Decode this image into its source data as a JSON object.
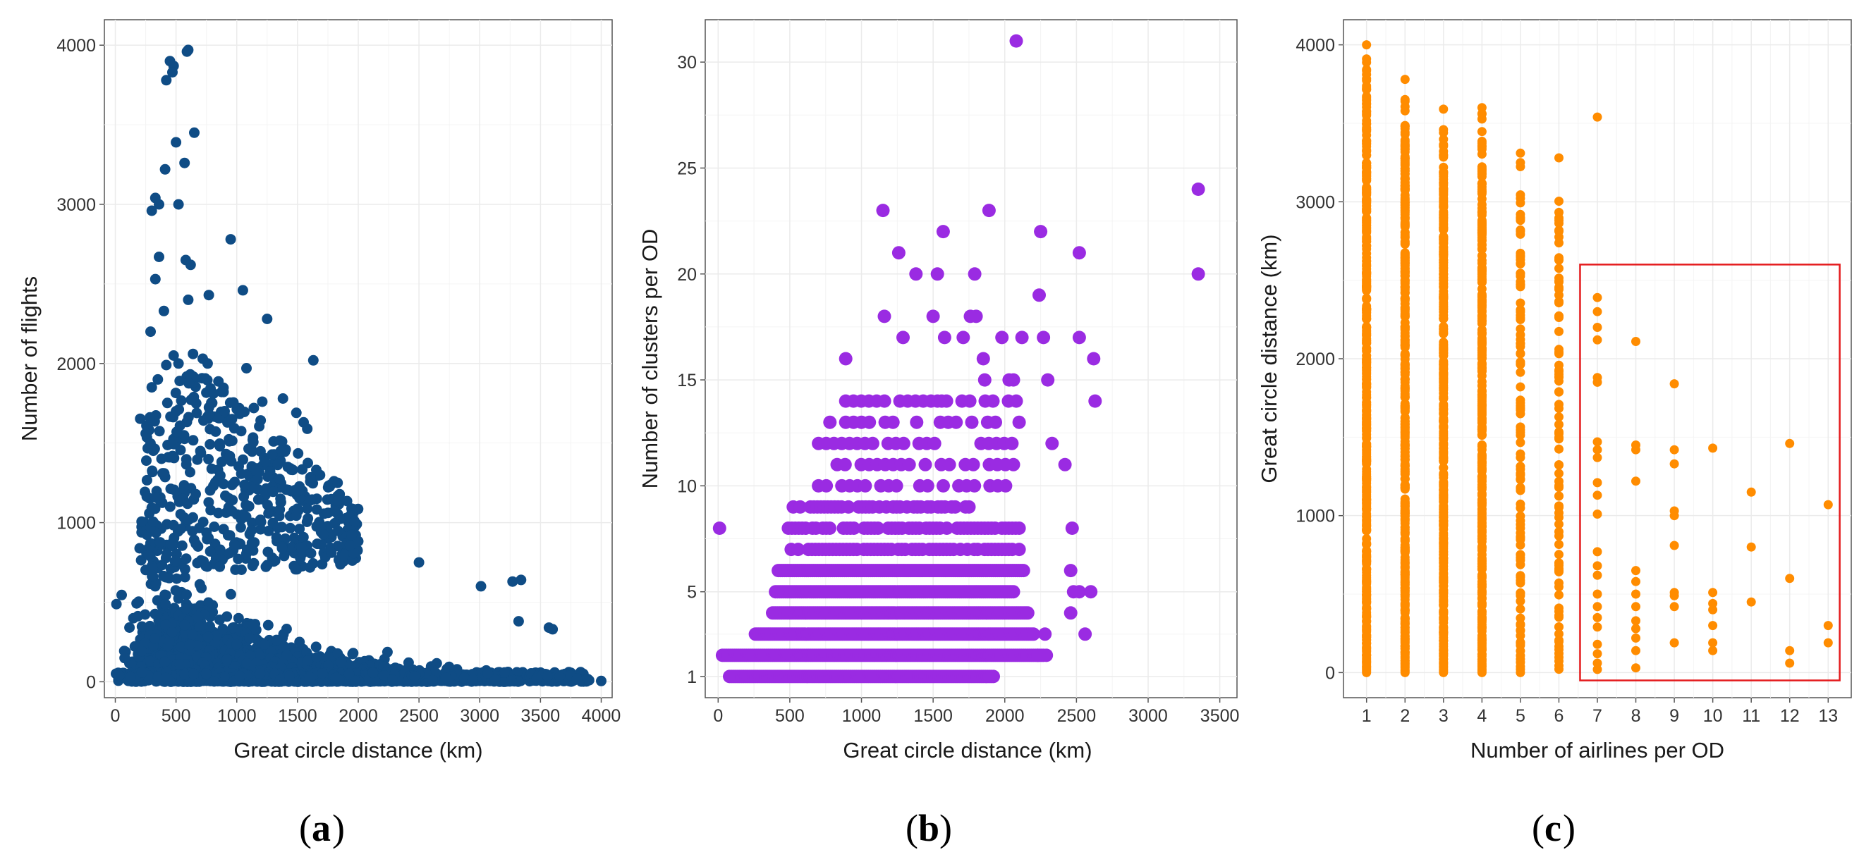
{
  "colors": {
    "panel_a_points": "#0f4c85",
    "panel_b_points": "#9a2be2",
    "panel_c_points": "#ff8c00",
    "highlight_box": "#e41a1c"
  },
  "chart_data": [
    {
      "id": "a",
      "type": "scatter",
      "panel_label": "a",
      "xlabel": "Great circle distance (km)",
      "ylabel": "Number of flights",
      "xlim": [
        -90,
        4090
      ],
      "ylim": [
        -100,
        4160
      ],
      "xticks": [
        0,
        500,
        1000,
        1500,
        2000,
        2500,
        3000,
        3500,
        4000
      ],
      "xtick_labels": [
        "0",
        "500",
        "1000",
        "1500",
        "2000",
        "2500",
        "3000",
        "3500",
        "4000"
      ],
      "yticks": [
        0,
        1000,
        2000,
        3000,
        4000
      ],
      "ytick_labels": [
        "0",
        "1000",
        "2000",
        "3000",
        "4000"
      ],
      "grid": true,
      "color": "#0f4c85",
      "series": [
        {
          "description_points": "dense cloud near zero plus upper outliers",
          "points": [
            [
              450,
              3900
            ],
            [
              480,
              3870
            ],
            [
              420,
              3780
            ],
            [
              470,
              3830
            ],
            [
              590,
              3960
            ],
            [
              600,
              3970
            ],
            [
              650,
              3450
            ],
            [
              500,
              3390
            ],
            [
              570,
              3260
            ],
            [
              410,
              3220
            ],
            [
              330,
              3040
            ],
            [
              360,
              3000
            ],
            [
              300,
              2960
            ],
            [
              520,
              3000
            ],
            [
              950,
              2780
            ],
            [
              360,
              2670
            ],
            [
              330,
              2530
            ],
            [
              580,
              2650
            ],
            [
              620,
              2620
            ],
            [
              1050,
              2460
            ],
            [
              770,
              2430
            ],
            [
              600,
              2400
            ],
            [
              1250,
              2280
            ],
            [
              290,
              2200
            ],
            [
              400,
              2330
            ],
            [
              480,
              2050
            ],
            [
              520,
              2000
            ],
            [
              640,
              2060
            ],
            [
              720,
              2030
            ],
            [
              760,
              2000
            ],
            [
              1630,
              2020
            ],
            [
              420,
              1990
            ],
            [
              350,
              1900
            ],
            [
              530,
              1890
            ],
            [
              1080,
              1970
            ],
            [
              1210,
              1760
            ],
            [
              1380,
              1780
            ],
            [
              900,
              1700
            ],
            [
              960,
              1650
            ],
            [
              1140,
              1720
            ],
            [
              1040,
              1700
            ],
            [
              1550,
              1630
            ],
            [
              1490,
              1690
            ],
            [
              1580,
              1590
            ],
            [
              1800,
              1260
            ],
            [
              1830,
              1250
            ],
            [
              300,
              1850
            ],
            [
              250,
              1560
            ],
            [
              500,
              1700
            ],
            [
              700,
              1450
            ],
            [
              1420,
              1350
            ],
            [
              2500,
              750
            ],
            [
              3010,
              600
            ],
            [
              3270,
              630
            ],
            [
              3340,
              640
            ],
            [
              3320,
              380
            ],
            [
              3570,
              340
            ],
            [
              3600,
              330
            ],
            [
              3750,
              40
            ],
            [
              3800,
              20
            ],
            [
              3900,
              10
            ],
            [
              4000,
              5
            ]
          ]
        }
      ]
    },
    {
      "id": "b",
      "type": "scatter",
      "panel_label": "b",
      "xlabel": "Great circle distance (km)",
      "ylabel": "Number of clusters per OD",
      "xlim": [
        -90,
        3620
      ],
      "ylim": [
        0.0,
        32.0
      ],
      "xticks": [
        0,
        500,
        1000,
        1500,
        2000,
        2500,
        3000,
        3500
      ],
      "xtick_labels": [
        "0",
        "500",
        "1000",
        "1500",
        "2000",
        "2500",
        "3000",
        "3500"
      ],
      "yticks": [
        1,
        5,
        10,
        15,
        20,
        25,
        30
      ],
      "ytick_labels": [
        "1",
        "5",
        "10",
        "15",
        "20",
        "25",
        "30"
      ],
      "grid": true,
      "color": "#9a2be2",
      "series": [
        {
          "points": [
            [
              10,
              8
            ],
            [
              2080,
              31
            ],
            [
              3350,
              24
            ],
            [
              3350,
              20
            ],
            [
              1150,
              23
            ],
            [
              1890,
              23
            ],
            [
              1570,
              22
            ],
            [
              2250,
              22
            ],
            [
              2520,
              21
            ],
            [
              1260,
              21
            ],
            [
              1380,
              20
            ],
            [
              1530,
              20
            ],
            [
              1790,
              20
            ],
            [
              2240,
              19
            ],
            [
              1160,
              18
            ],
            [
              1500,
              18
            ],
            [
              1760,
              18
            ],
            [
              1800,
              18
            ],
            [
              1290,
              17
            ],
            [
              1580,
              17
            ],
            [
              1710,
              17
            ],
            [
              1980,
              17
            ],
            [
              2120,
              17
            ],
            [
              2270,
              17
            ],
            [
              2520,
              17
            ],
            [
              890,
              16
            ],
            [
              1850,
              16
            ],
            [
              2620,
              16
            ],
            [
              1860,
              15
            ],
            [
              2030,
              15
            ],
            [
              2060,
              15
            ],
            [
              2300,
              15
            ],
            [
              1530,
              14
            ],
            [
              1560,
              14
            ],
            [
              2630,
              14
            ],
            [
              2420,
              11
            ],
            [
              2470,
              8
            ],
            [
              2460,
              6
            ],
            [
              2520,
              5
            ],
            [
              2600,
              5
            ],
            [
              2460,
              4
            ],
            [
              2560,
              3
            ],
            [
              2280,
              3
            ],
            [
              2230,
              2
            ],
            [
              2290,
              2
            ],
            [
              2480,
              5
            ],
            [
              2330,
              12
            ]
          ]
        }
      ]
    },
    {
      "id": "c",
      "type": "scatter",
      "panel_label": "c",
      "xlabel": "Number of airlines per OD",
      "ylabel": "Great circle distance (km)",
      "xlim": [
        0.4,
        13.6
      ],
      "ylim": [
        -160,
        4160
      ],
      "xticks": [
        1,
        2,
        3,
        4,
        5,
        6,
        7,
        8,
        9,
        10,
        11,
        12,
        13
      ],
      "xtick_labels": [
        "1",
        "2",
        "3",
        "4",
        "5",
        "6",
        "7",
        "8",
        "9",
        "10",
        "11",
        "12",
        "13"
      ],
      "yticks": [
        0,
        1000,
        2000,
        3000,
        4000
      ],
      "ytick_labels": [
        "0",
        "1000",
        "2000",
        "3000",
        "4000"
      ],
      "grid": true,
      "color": "#ff8c00",
      "highlight_box": {
        "x0": 6.55,
        "x1": 13.3,
        "y0": -50,
        "y1": 2600
      },
      "column_max": {
        "1": 4000,
        "2": 3780,
        "3": 3590,
        "4": 3600,
        "5": 3310,
        "6": 3280
      },
      "series": [
        {
          "points": [
            [
              7,
              3540
            ],
            [
              7,
              2390
            ],
            [
              7,
              2300
            ],
            [
              7,
              2200
            ],
            [
              7,
              2120
            ],
            [
              7,
              1880
            ],
            [
              7,
              1850
            ],
            [
              7,
              1470
            ],
            [
              7,
              1420
            ],
            [
              7,
              1370
            ],
            [
              7,
              1210
            ],
            [
              7,
              1130
            ],
            [
              7,
              1010
            ],
            [
              7,
              770
            ],
            [
              7,
              680
            ],
            [
              7,
              620
            ],
            [
              7,
              500
            ],
            [
              7,
              420
            ],
            [
              7,
              350
            ],
            [
              7,
              290
            ],
            [
              7,
              180
            ],
            [
              7,
              120
            ],
            [
              7,
              60
            ],
            [
              7,
              20
            ],
            [
              8,
              2110
            ],
            [
              8,
              1450
            ],
            [
              8,
              1420
            ],
            [
              8,
              1220
            ],
            [
              8,
              650
            ],
            [
              8,
              580
            ],
            [
              8,
              500
            ],
            [
              8,
              420
            ],
            [
              8,
              330
            ],
            [
              8,
              280
            ],
            [
              8,
              220
            ],
            [
              8,
              140
            ],
            [
              8,
              30
            ],
            [
              9,
              1840
            ],
            [
              9,
              1420
            ],
            [
              9,
              1330
            ],
            [
              9,
              1030
            ],
            [
              9,
              1000
            ],
            [
              9,
              810
            ],
            [
              9,
              510
            ],
            [
              9,
              490
            ],
            [
              9,
              420
            ],
            [
              9,
              190
            ],
            [
              10,
              1430
            ],
            [
              10,
              510
            ],
            [
              10,
              440
            ],
            [
              10,
              400
            ],
            [
              10,
              300
            ],
            [
              10,
              190
            ],
            [
              10,
              140
            ],
            [
              11,
              1150
            ],
            [
              11,
              800
            ],
            [
              11,
              450
            ],
            [
              12,
              1460
            ],
            [
              12,
              600
            ],
            [
              12,
              140
            ],
            [
              12,
              60
            ],
            [
              13,
              1070
            ],
            [
              13,
              300
            ],
            [
              13,
              190
            ]
          ]
        }
      ]
    }
  ]
}
